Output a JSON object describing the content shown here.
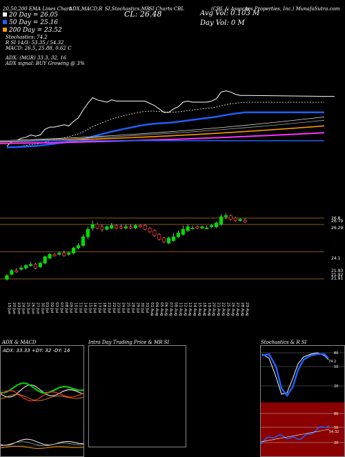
{
  "header": {
    "line1": [
      "20,50,200 EMA Lines Chart",
      "ADX,MACD,R",
      "SI,Stochastics,MR",
      "SI Charts CBL",
      "(CBL & Associa",
      "tes Properties, Inc.) MunafaSutra.com"
    ],
    "ema20": "20 Day = 26.05",
    "ema50": "50 Day = 25.16",
    "ema200": "200 Day = 23.52",
    "close": "CL: 26.48",
    "avg_vol": "Avg Vol: 0.103 M",
    "day_vol": "Day Vol: 0  M",
    "stochastics": "Stochastics: 74.2",
    "rsi": "R                 SI 14/3: 53.35 / 54.32",
    "macd": "MACD: 26.5, 25.88, 0.62  C",
    "adx": "ADX:                       (MGR) 33.3,  32,  16",
    "adx_signal": "ADX  signal:                              BUY Growing @ 3%"
  },
  "colors": {
    "up": "#00dd00",
    "down": "#ff3333",
    "ema20": "#ffffff",
    "ema50": "#1f5fff",
    "ema200": "#ff9900",
    "pink": "#ff33ff",
    "grid": "#8b5a1e"
  },
  "price_labels": [
    "26.8",
    "26.79",
    "26.29",
    "24.1",
    "21.93",
    "21.92",
    "21.91"
  ],
  "x_dates": [
    "19 Jun",
    "20 Jun",
    "23 Jun",
    "24 Jun",
    "25 Jun",
    "26 Jun",
    "27 Jun",
    "30 Jun",
    "01 Jul",
    "02 Jul",
    "03 Jul",
    "07 Jul",
    "08 Jul",
    "09 Jul",
    "10 Jul",
    "11 Jul",
    "14 Jul",
    "15 Jul",
    "16 Jul",
    "17 Jul",
    "18 Jul",
    "21 Jul",
    "22 Jul",
    "23 Jul",
    "24 Jul",
    "25 Jul",
    "28 Jul",
    "29 Jul",
    "30 Jul",
    "31 Jul",
    "01 Aug",
    "04 Aug",
    "05 Aug",
    "06 Aug",
    "07 Aug",
    "08 Aug",
    "11 Aug",
    "12 Aug",
    "13 Aug",
    "14 Aug",
    "15 Aug",
    "18 Aug",
    "19 Aug",
    "20 Aug",
    "21 Aug",
    "22 Aug",
    "25 Aug",
    "26 Aug",
    "27 Aug",
    "28 Aug",
    "29 Aug"
  ],
  "panels": {
    "adx_title": "ADX  & MACD",
    "adx_label": "ADX: 33.33  +DY: 32  -DY: 16",
    "intraday_title": "Intra  Day Trading Price  & MR                        SI",
    "stoch_title": "Stochastics & R                    SI",
    "stoch_ticks": [
      "80",
      "50",
      "20"
    ],
    "stoch_value": "74.2",
    "rsi_ticks": [
      "80",
      "50",
      "20"
    ],
    "rsi_value": "54.32"
  },
  "chart_data": {
    "type": "candlestick",
    "x": [
      "19 Jun",
      "20 Jun",
      "23 Jun",
      "24 Jun",
      "25 Jun",
      "26 Jun",
      "27 Jun",
      "30 Jun",
      "01 Jul",
      "02 Jul",
      "03 Jul",
      "07 Jul",
      "08 Jul",
      "09 Jul",
      "10 Jul",
      "11 Jul",
      "14 Jul",
      "15 Jul",
      "16 Jul",
      "17 Jul",
      "18 Jul",
      "21 Jul",
      "22 Jul",
      "23 Jul",
      "24 Jul",
      "25 Jul",
      "28 Jul",
      "29 Jul",
      "30 Jul",
      "31 Jul",
      "01 Aug",
      "04 Aug",
      "05 Aug",
      "06 Aug",
      "07 Aug",
      "08 Aug",
      "11 Aug",
      "12 Aug",
      "13 Aug",
      "14 Aug",
      "15 Aug",
      "18 Aug",
      "19 Aug",
      "20 Aug",
      "21 Aug",
      "22 Aug",
      "25 Aug",
      "26 Aug",
      "27 Aug",
      "28 Aug",
      "29 Aug"
    ],
    "open": [
      21.9,
      22.3,
      22.6,
      22.7,
      22.8,
      23.0,
      23.1,
      22.9,
      23.2,
      23.6,
      23.9,
      23.9,
      24.0,
      23.9,
      24.0,
      24.4,
      24.6,
      25.3,
      26.0,
      26.3,
      26.1,
      25.9,
      26.0,
      26.2,
      26.1,
      26.0,
      26.1,
      26.0,
      26.2,
      26.2,
      26.0,
      25.8,
      25.5,
      25.2,
      24.8,
      25.0,
      25.3,
      25.5,
      25.8,
      26.0,
      26.1,
      26.0,
      26.0,
      26.1,
      26.1,
      26.3,
      26.9,
      27.0,
      26.8,
      26.6,
      26.6
    ],
    "close": [
      22.2,
      22.6,
      22.5,
      22.8,
      23.0,
      23.1,
      22.8,
      23.2,
      23.7,
      23.9,
      23.8,
      24.0,
      23.8,
      24.0,
      24.4,
      24.6,
      25.3,
      25.9,
      26.3,
      26.0,
      25.9,
      26.1,
      26.2,
      26.0,
      26.0,
      26.1,
      26.0,
      26.2,
      26.1,
      25.9,
      25.7,
      25.4,
      25.1,
      24.9,
      25.2,
      25.3,
      25.6,
      25.9,
      26.1,
      26.0,
      26.0,
      26.1,
      26.0,
      26.2,
      26.4,
      26.9,
      27.0,
      26.7,
      26.6,
      26.7,
      26.5
    ],
    "high": [
      22.3,
      22.7,
      22.8,
      23.0,
      23.1,
      23.3,
      23.2,
      23.3,
      23.8,
      24.0,
      24.0,
      24.1,
      24.2,
      24.1,
      24.5,
      24.8,
      25.5,
      26.1,
      26.6,
      26.4,
      26.3,
      26.2,
      26.4,
      26.3,
      26.3,
      26.3,
      26.3,
      26.3,
      26.3,
      26.3,
      26.1,
      25.9,
      25.6,
      25.3,
      25.3,
      25.6,
      25.8,
      26.2,
      26.3,
      26.2,
      26.2,
      26.2,
      26.2,
      26.3,
      26.5,
      27.1,
      27.2,
      27.1,
      26.9,
      26.8,
      26.8
    ],
    "low": [
      21.8,
      22.2,
      22.4,
      22.6,
      22.7,
      22.9,
      22.7,
      22.8,
      23.1,
      23.5,
      23.7,
      23.8,
      23.7,
      23.8,
      23.9,
      24.3,
      24.5,
      25.1,
      25.8,
      25.9,
      25.7,
      25.8,
      25.9,
      25.9,
      25.9,
      25.9,
      25.9,
      25.9,
      26.0,
      25.8,
      25.6,
      25.3,
      25.0,
      24.8,
      24.7,
      24.9,
      25.2,
      25.4,
      25.7,
      25.9,
      25.9,
      25.9,
      25.9,
      26.0,
      26.0,
      26.2,
      26.7,
      26.6,
      26.5,
      26.5,
      26.4
    ],
    "ylim": [
      21.6,
      27.4
    ],
    "reference_lines": [
      26.8,
      26.29,
      24.1,
      21.93
    ]
  }
}
